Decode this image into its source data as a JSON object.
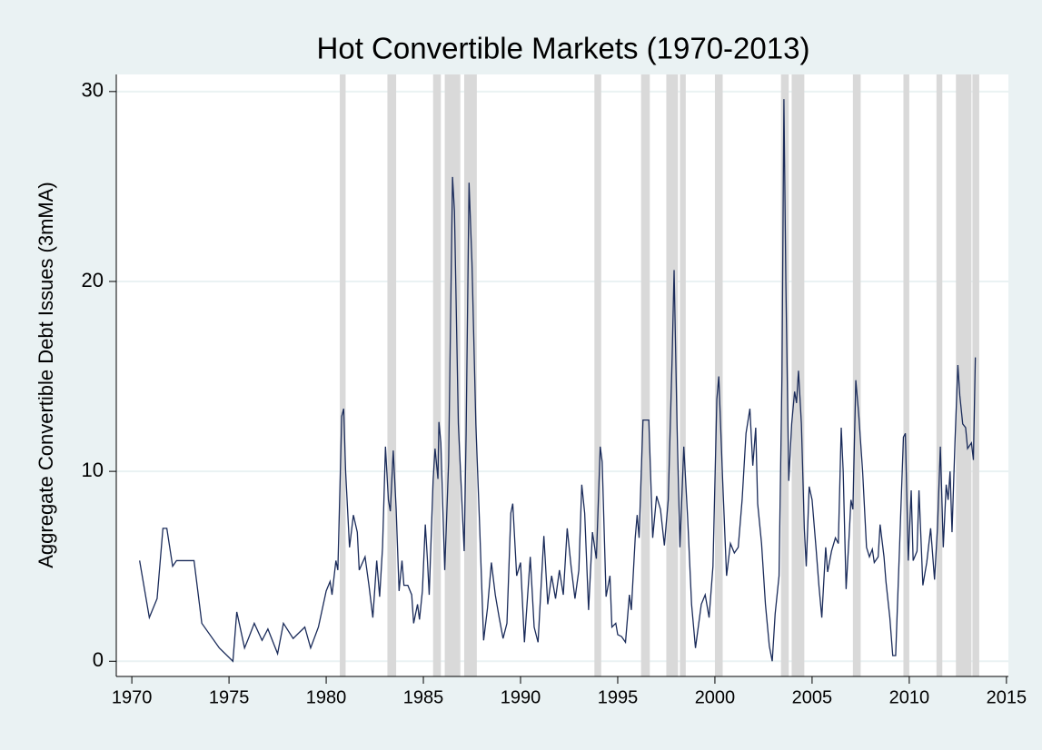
{
  "chart_data": {
    "type": "line",
    "title": "Hot Convertible Markets (1970-2013)",
    "y_label": "Aggregate Convertible Debt Issues (3mMA)",
    "color": "#1a2b5a",
    "shade_color": "#d9d9d9",
    "grid": true,
    "xlim": [
      1969.2,
      2015.1
    ],
    "ylim": [
      -0.8,
      30.9
    ],
    "xticks": [
      1970,
      1975,
      1980,
      1985,
      1990,
      1995,
      2000,
      2005,
      2010,
      2015
    ],
    "yticks": [
      0,
      10,
      20,
      30
    ],
    "shaded_periods": [
      [
        1980.7,
        1981.0
      ],
      [
        1983.15,
        1983.6
      ],
      [
        1985.5,
        1985.9
      ],
      [
        1986.1,
        1986.9
      ],
      [
        1987.1,
        1987.75
      ],
      [
        1993.8,
        1994.15
      ],
      [
        1996.2,
        1996.65
      ],
      [
        1997.5,
        1998.1
      ],
      [
        1998.2,
        1998.5
      ],
      [
        2000.0,
        2000.4
      ],
      [
        2003.4,
        2003.8
      ],
      [
        2003.95,
        2004.6
      ],
      [
        2007.1,
        2007.5
      ],
      [
        2009.7,
        2010.0
      ],
      [
        2011.4,
        2011.7
      ],
      [
        2012.4,
        2013.2
      ],
      [
        2013.25,
        2013.6
      ]
    ],
    "x": [
      1970.4,
      1970.9,
      1971.3,
      1971.6,
      1971.8,
      1972.1,
      1972.3,
      1973.0,
      1973.2,
      1973.6,
      1974.5,
      1975.2,
      1975.4,
      1975.8,
      1976.0,
      1976.3,
      1976.7,
      1977.0,
      1977.5,
      1977.8,
      1978.3,
      1978.5,
      1978.9,
      1979.2,
      1979.6,
      1980.0,
      1980.2,
      1980.3,
      1980.5,
      1980.6,
      1980.8,
      1980.9,
      1981.0,
      1981.2,
      1981.4,
      1981.6,
      1981.7,
      1982.0,
      1982.2,
      1982.4,
      1982.6,
      1982.75,
      1982.9,
      1983.05,
      1983.2,
      1983.3,
      1983.45,
      1983.6,
      1983.75,
      1983.9,
      1984.0,
      1984.2,
      1984.4,
      1984.5,
      1984.7,
      1984.8,
      1984.95,
      1985.1,
      1985.2,
      1985.3,
      1985.5,
      1985.6,
      1985.75,
      1985.8,
      1985.9,
      1986.1,
      1986.3,
      1986.5,
      1986.6,
      1986.8,
      1987.0,
      1987.1,
      1987.2,
      1987.35,
      1987.5,
      1987.7,
      1987.9,
      1988.1,
      1988.3,
      1988.5,
      1988.7,
      1988.9,
      1989.1,
      1989.3,
      1989.5,
      1989.6,
      1989.8,
      1990.0,
      1990.2,
      1990.5,
      1990.7,
      1990.9,
      1991.2,
      1991.4,
      1991.6,
      1991.8,
      1992.0,
      1992.2,
      1992.4,
      1992.6,
      1992.8,
      1993.0,
      1993.15,
      1993.3,
      1993.5,
      1993.7,
      1993.9,
      1994.1,
      1994.2,
      1994.4,
      1994.6,
      1994.7,
      1994.9,
      1995.0,
      1995.2,
      1995.4,
      1995.6,
      1995.7,
      1995.9,
      1996.0,
      1996.1,
      1996.3,
      1996.6,
      1996.8,
      1997.0,
      1997.2,
      1997.4,
      1997.6,
      1997.8,
      1997.9,
      1998.05,
      1998.2,
      1998.4,
      1998.6,
      1998.8,
      1999.0,
      1999.3,
      1999.5,
      1999.7,
      1999.9,
      2000.1,
      2000.2,
      2000.4,
      2000.6,
      2000.8,
      2001.0,
      2001.2,
      2001.4,
      2001.6,
      2001.8,
      2001.95,
      2002.1,
      2002.2,
      2002.4,
      2002.6,
      2002.8,
      2002.95,
      2003.1,
      2003.3,
      2003.45,
      2003.55,
      2003.65,
      2003.8,
      2003.95,
      2004.1,
      2004.2,
      2004.3,
      2004.45,
      2004.6,
      2004.7,
      2004.85,
      2005.0,
      2005.2,
      2005.35,
      2005.5,
      2005.7,
      2005.8,
      2006.0,
      2006.2,
      2006.35,
      2006.5,
      2006.6,
      2006.75,
      2006.9,
      2007.0,
      2007.1,
      2007.25,
      2007.4,
      2007.6,
      2007.8,
      2007.95,
      2008.1,
      2008.2,
      2008.4,
      2008.5,
      2008.7,
      2008.8,
      2009.0,
      2009.15,
      2009.3,
      2009.5,
      2009.7,
      2009.8,
      2009.95,
      2010.1,
      2010.2,
      2010.4,
      2010.5,
      2010.7,
      2010.9,
      2011.1,
      2011.3,
      2011.45,
      2011.6,
      2011.75,
      2011.9,
      2012.0,
      2012.1,
      2012.2,
      2012.35,
      2012.5,
      2012.6,
      2012.75,
      2012.9,
      2013.0,
      2013.2,
      2013.3,
      2013.4
    ],
    "values": [
      5.3,
      2.3,
      3.3,
      7.0,
      7.0,
      5.0,
      5.3,
      5.3,
      5.3,
      2.0,
      0.7,
      0,
      2.6,
      0.7,
      1.2,
      2.0,
      1.1,
      1.7,
      0.4,
      2.0,
      1.2,
      1.4,
      1.8,
      0.7,
      1.8,
      3.7,
      4.2,
      3.5,
      5.3,
      4.8,
      12.9,
      13.3,
      10,
      6.0,
      7.7,
      6.8,
      4.8,
      5.5,
      4.0,
      2.3,
      5.3,
      3.4,
      6,
      11.3,
      8.5,
      7.9,
      11.1,
      8,
      3.7,
      5.3,
      4.0,
      4.0,
      3.5,
      2.0,
      3.0,
      2.2,
      3.7,
      7.2,
      5.5,
      3.5,
      9.5,
      11.2,
      9.6,
      12.6,
      11.5,
      4.8,
      10.5,
      25.5,
      23.7,
      12.5,
      8.0,
      5.8,
      12,
      25.2,
      21,
      12.5,
      7.0,
      1.1,
      2.8,
      5.2,
      3.5,
      2.3,
      1.2,
      2.0,
      7.8,
      8.3,
      4.5,
      5.2,
      1.0,
      5.5,
      1.8,
      1.0,
      6.6,
      3.0,
      4.5,
      3.3,
      4.8,
      3.5,
      7.0,
      5.0,
      3.3,
      4.8,
      9.3,
      7.8,
      2.7,
      6.8,
      5.4,
      11.3,
      10.5,
      3.4,
      4.5,
      1.8,
      2.0,
      1.4,
      1.3,
      1.0,
      3.5,
      2.7,
      6.5,
      7.7,
      6.5,
      12.7,
      12.7,
      6.5,
      8.7,
      8.0,
      6.1,
      8.5,
      16,
      20.6,
      12.5,
      6.0,
      11.3,
      7.5,
      3.0,
      0.7,
      3.0,
      3.5,
      2.3,
      5,
      13.8,
      15.0,
      9.5,
      4.5,
      6.2,
      5.7,
      6.0,
      8.5,
      12,
      13.3,
      10.3,
      12.3,
      8.3,
      6.2,
      3.0,
      0.8,
      0.0,
      2.5,
      4.5,
      15,
      29.6,
      20.0,
      9.5,
      12.5,
      14.2,
      13.6,
      15.3,
      12.5,
      7.0,
      5.0,
      9.2,
      8.5,
      6.0,
      4.0,
      2.3,
      6.0,
      4.7,
      5.8,
      6.5,
      6.2,
      12.3,
      10.0,
      3.8,
      6.5,
      8.5,
      8.0,
      14.8,
      13.0,
      10.0,
      6.0,
      5.5,
      5.9,
      5.2,
      5.5,
      7.2,
      5.5,
      4.2,
      2.3,
      0.3,
      0.3,
      6,
      11.8,
      12,
      5.3,
      9,
      5.3,
      5.8,
      9.0,
      4.0,
      5.2,
      7.0,
      4.3,
      7.0,
      11.3,
      6.0,
      9.3,
      8.5,
      10.0,
      6.8,
      11.5,
      15.6,
      14.0,
      12.5,
      12.3,
      11.2,
      11.5,
      10.6,
      16.0
    ]
  }
}
